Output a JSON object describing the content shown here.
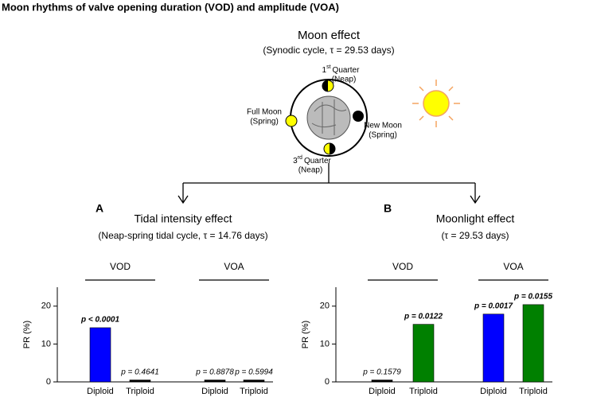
{
  "title": "Moon rhythms of valve opening duration (VOD) and amplitude (VOA)",
  "diagram": {
    "title": "Moon effect",
    "subtitle": "(Synodic cycle, τ = 29.53 days)",
    "first_quarter": {
      "ordinal": "1",
      "suffix": "st",
      "name": "Quarter",
      "phase": "(Neap)"
    },
    "full_moon": {
      "name": "Full Moon",
      "phase": "(Spring)"
    },
    "new_moon": {
      "name": "New Moon",
      "phase": "(Spring)"
    },
    "third_quarter": {
      "ordinal": "3",
      "suffix": "rd",
      "name": "Quarter",
      "phase": "(Neap)"
    }
  },
  "chart_data": [
    {
      "type": "bar",
      "panel": "A",
      "title": "Tidal intensity effect",
      "subtitle": "(Neap-spring tidal cycle, τ = 14.76 days)",
      "y_label": "PR (%)",
      "groups": [
        "VOD",
        "VOA"
      ],
      "categories": [
        "Diploid",
        "Triploid",
        "Diploid",
        "Triploid"
      ],
      "values": [
        14.3,
        0.5,
        0.5,
        0.5
      ],
      "colors": [
        "#0000ff",
        "#000000",
        "#000000",
        "#000000"
      ],
      "annotations": [
        "p < 0.0001",
        "p = 0.4641",
        "p = 0.8878",
        "p = 0.5994"
      ],
      "annotation_bold": [
        true,
        false,
        false,
        false
      ],
      "ylim": [
        0,
        25
      ],
      "yticks": [
        0,
        10,
        20
      ]
    },
    {
      "type": "bar",
      "panel": "B",
      "title": "Moonlight effect",
      "subtitle": "(τ = 29.53 days)",
      "y_label": "PR (%)",
      "groups": [
        "VOD",
        "VOA"
      ],
      "categories": [
        "Diploid",
        "Triploid",
        "Diploid",
        "Triploid"
      ],
      "values": [
        0.5,
        15.2,
        17.9,
        20.4
      ],
      "colors": [
        "#000000",
        "#008000",
        "#0000ff",
        "#008000"
      ],
      "annotations": [
        "p = 0.1579",
        "p = 0.0122",
        "p = 0.0017",
        "p = 0.0155"
      ],
      "annotation_bold": [
        false,
        true,
        true,
        true
      ],
      "ylim": [
        0,
        25
      ],
      "yticks": [
        0,
        10,
        20
      ]
    }
  ]
}
